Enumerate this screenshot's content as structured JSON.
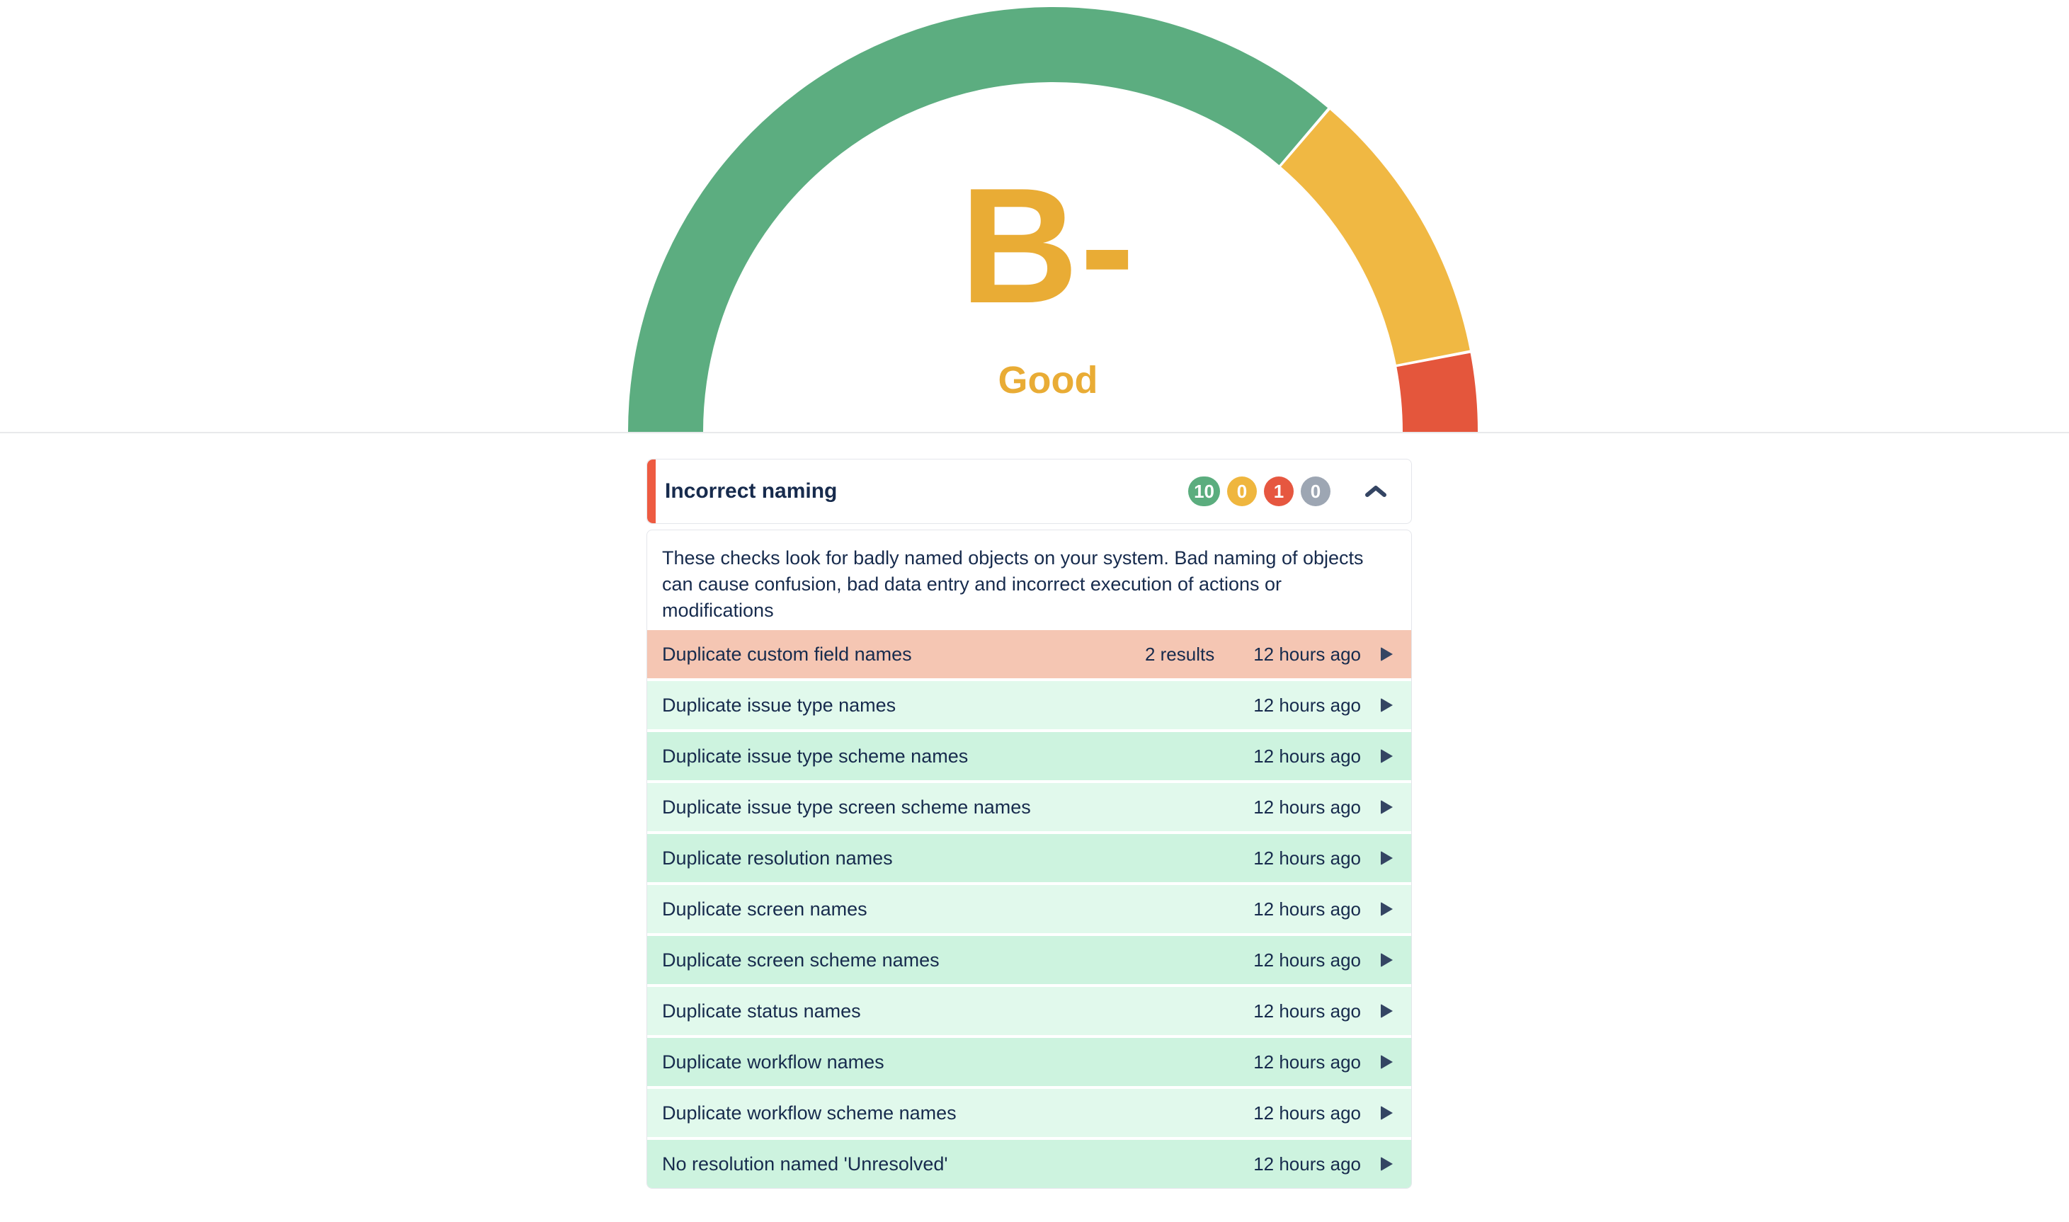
{
  "gauge": {
    "grade": "B-",
    "label": "Good",
    "grade_color": "#E9AC35",
    "segments": [
      {
        "name": "green",
        "color": "#5CAD80",
        "from": 180,
        "to": 49.7
      },
      {
        "name": "yellow",
        "color": "#F0B843",
        "from": 49.3,
        "to": 11.1
      },
      {
        "name": "red",
        "color": "#E4563C",
        "from": 10.7,
        "to": 0
      }
    ]
  },
  "panel": {
    "title": "Incorrect naming",
    "accent_color": "#EE5B41",
    "badges": [
      {
        "value": "10",
        "color": "#5BAD7E",
        "name": "passed-count"
      },
      {
        "value": "0",
        "color": "#EFB63E",
        "name": "warning-count"
      },
      {
        "value": "1",
        "color": "#E65740",
        "name": "failed-count"
      },
      {
        "value": "0",
        "color": "#9DA6B3",
        "name": "disabled-count"
      }
    ],
    "description": "These checks look for badly named objects on your system. Bad naming of objects can cause confusion, bad data entry and incorrect execution of actions or modifications",
    "row_colors": {
      "fail": "#F5C6B3",
      "pass_light": "#E1F9EC",
      "pass_dark": "#CDF3DF"
    },
    "rows": [
      {
        "label": "Duplicate custom field names",
        "results": "2 results",
        "time": "12 hours ago",
        "status": "fail"
      },
      {
        "label": "Duplicate issue type names",
        "results": "",
        "time": "12 hours ago",
        "status": "pass"
      },
      {
        "label": "Duplicate issue type scheme names",
        "results": "",
        "time": "12 hours ago",
        "status": "pass"
      },
      {
        "label": "Duplicate issue type screen scheme names",
        "results": "",
        "time": "12 hours ago",
        "status": "pass"
      },
      {
        "label": "Duplicate resolution names",
        "results": "",
        "time": "12 hours ago",
        "status": "pass"
      },
      {
        "label": "Duplicate screen names",
        "results": "",
        "time": "12 hours ago",
        "status": "pass"
      },
      {
        "label": "Duplicate screen scheme names",
        "results": "",
        "time": "12 hours ago",
        "status": "pass"
      },
      {
        "label": "Duplicate status names",
        "results": "",
        "time": "12 hours ago",
        "status": "pass"
      },
      {
        "label": "Duplicate workflow names",
        "results": "",
        "time": "12 hours ago",
        "status": "pass"
      },
      {
        "label": "Duplicate workflow scheme names",
        "results": "",
        "time": "12 hours ago",
        "status": "pass"
      },
      {
        "label": "No resolution named 'Unresolved'",
        "results": "",
        "time": "12 hours ago",
        "status": "pass"
      }
    ]
  }
}
